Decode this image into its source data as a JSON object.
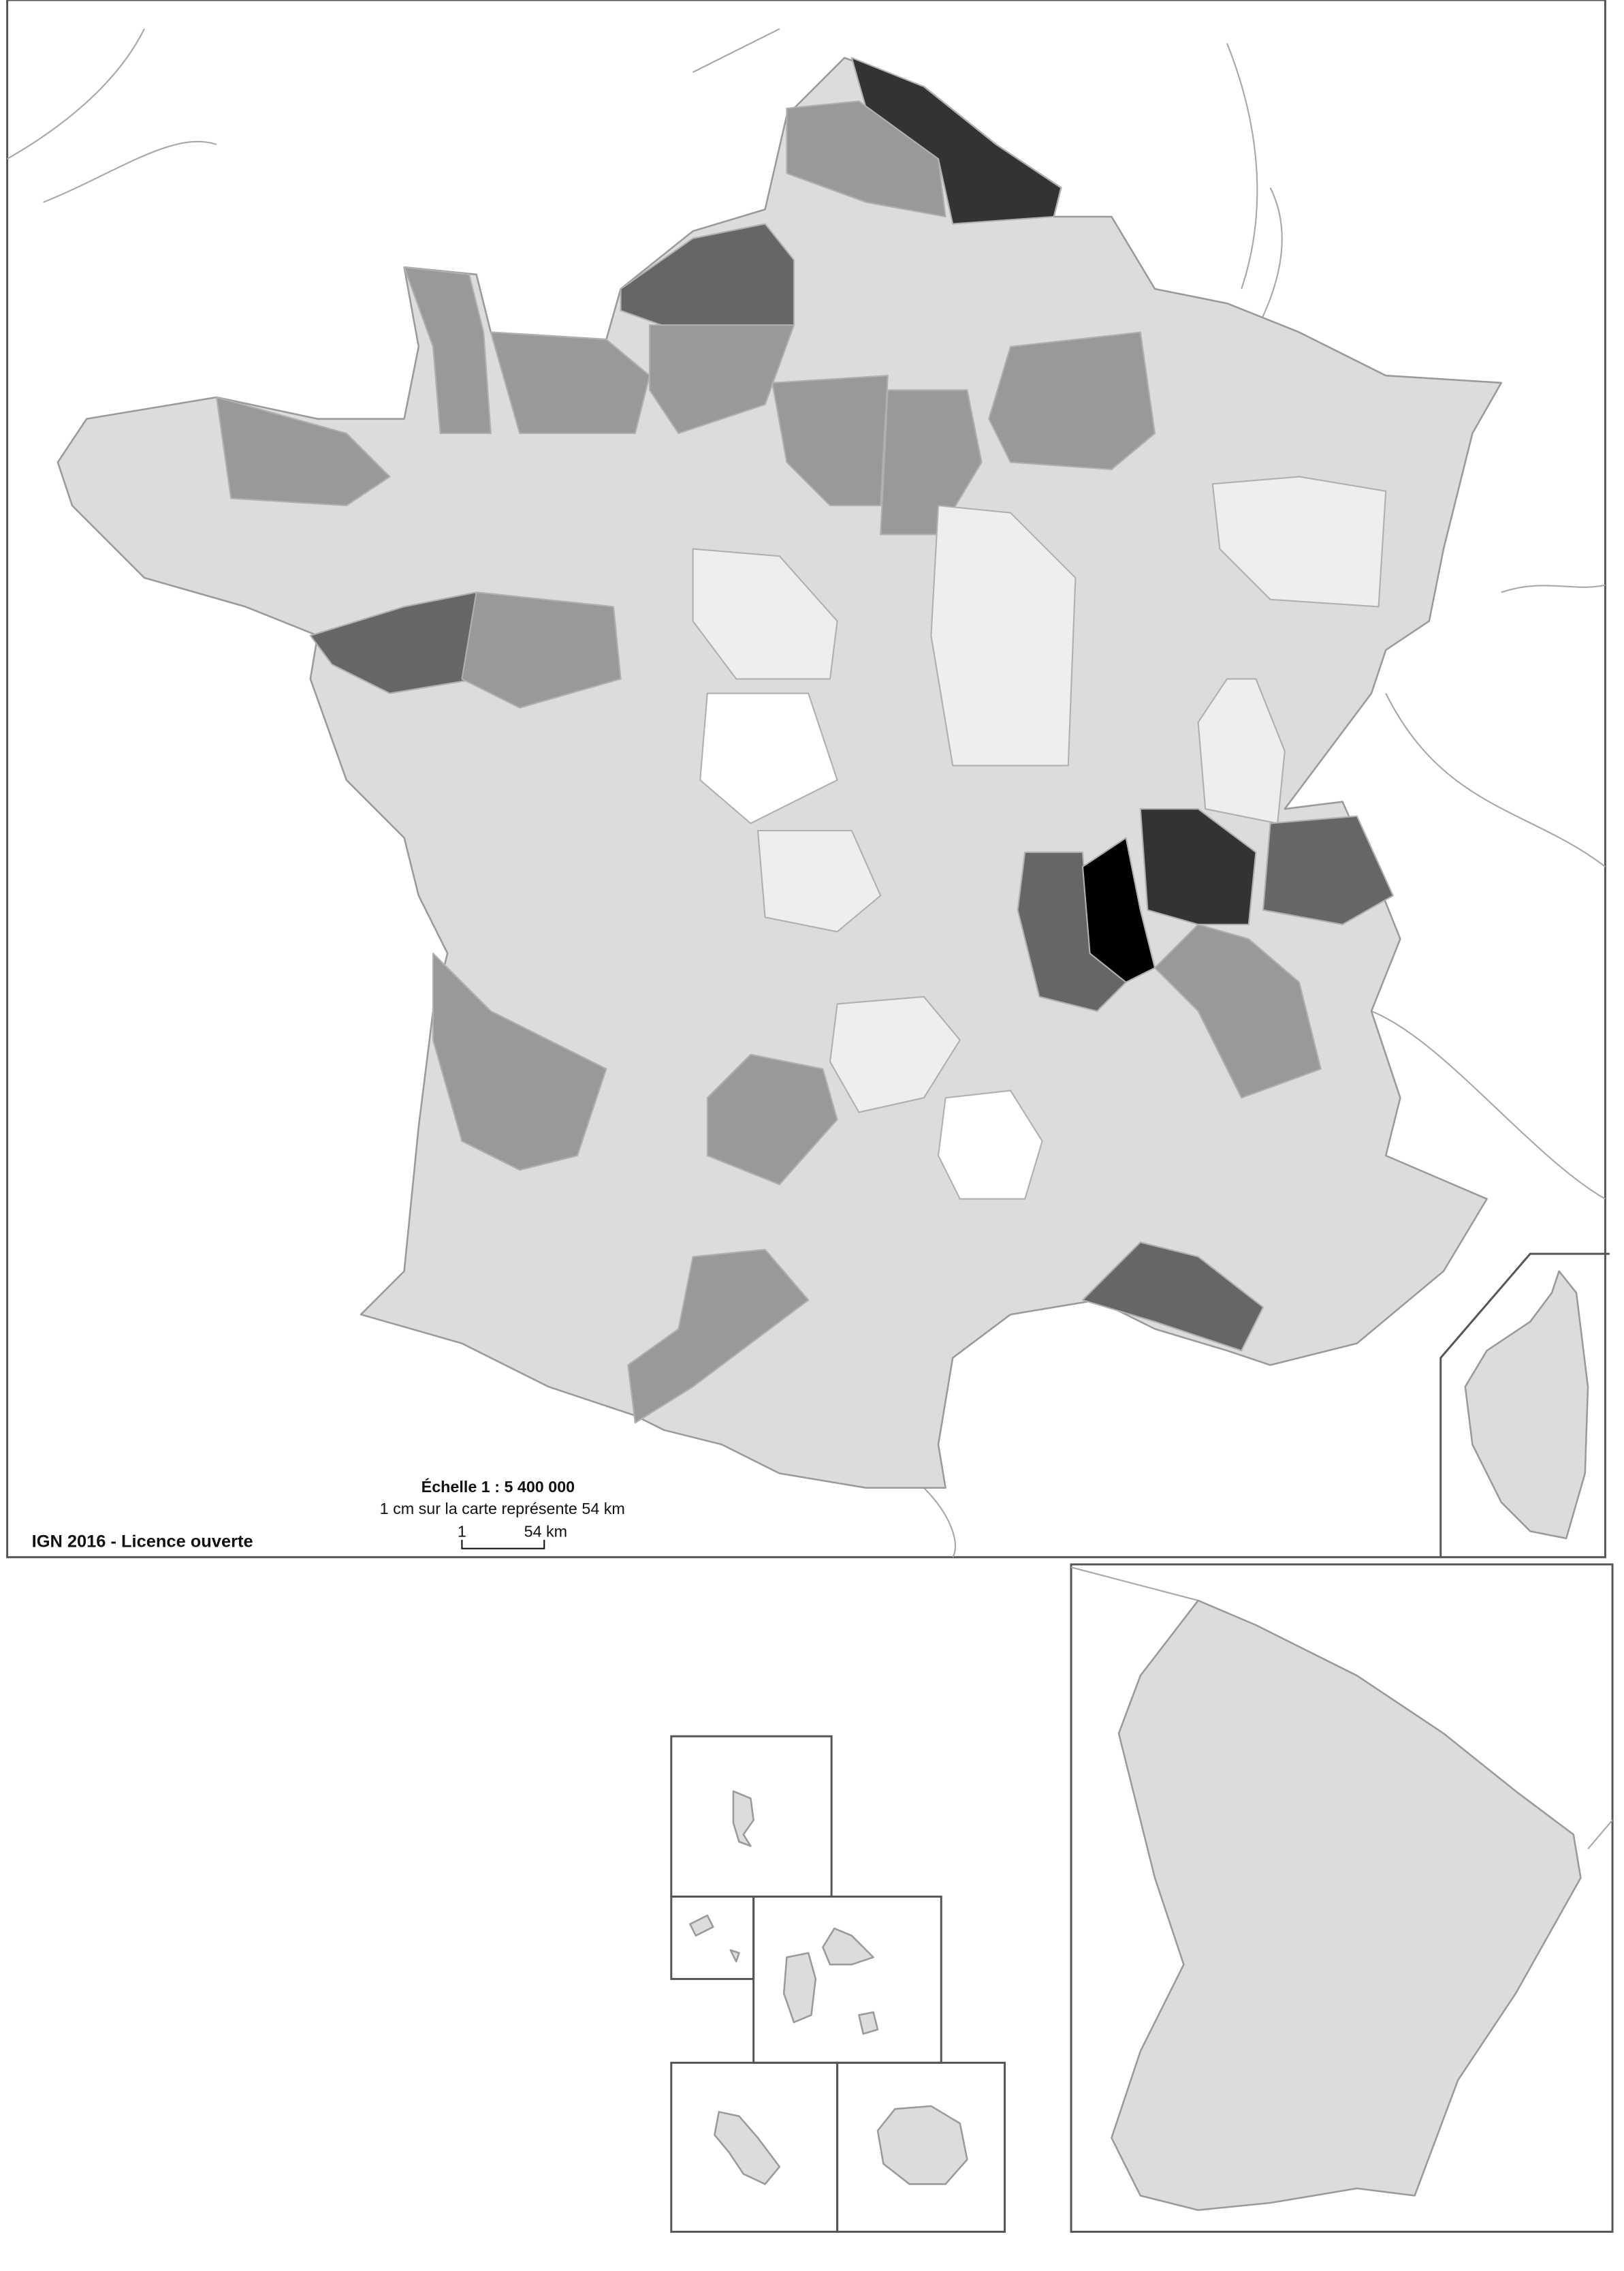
{
  "map": {
    "credit": "IGN 2016 - Licence ouverte",
    "scale_title": "Échelle 1 : 5 400 000",
    "scale_subtitle": "1 cm sur la carte représente 54 km",
    "scale_bar_start": "1",
    "scale_bar_end": "54 km",
    "type": "choropleth",
    "shades": {
      "base": "#dcdcdc",
      "very_light": "#eeeeee",
      "white": "#ffffff",
      "light": "#c8c8c8",
      "medium": "#999999",
      "dark": "#666666",
      "very_dark": "#333333",
      "black": "#000000"
    },
    "insets": [
      "Corse",
      "Guyane",
      "Mayotte",
      "Saint-Pierre-et-Miquelon",
      "Guadeloupe",
      "Martinique",
      "La Réunion"
    ]
  }
}
